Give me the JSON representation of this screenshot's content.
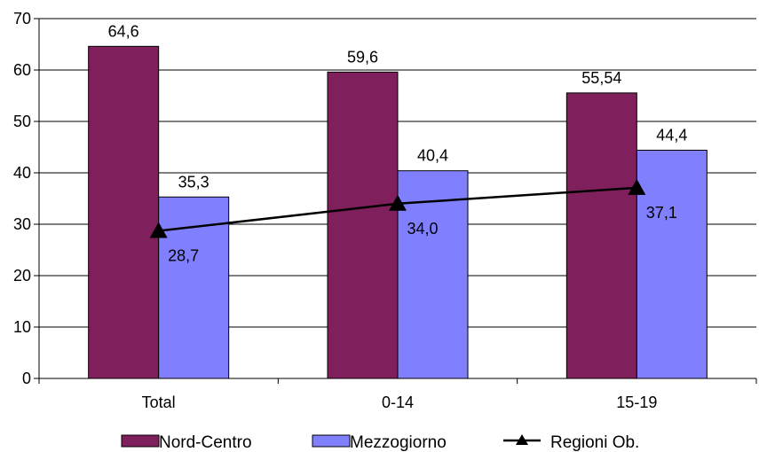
{
  "chart_data": {
    "type": "bar",
    "categories": [
      "Total",
      "0-14",
      "15-19"
    ],
    "series": [
      {
        "name": "Nord-Centro",
        "type": "bar",
        "color": "#7F1F5C",
        "values": [
          64.6,
          59.6,
          55.54
        ],
        "labels": [
          "64,6",
          "59,6",
          "55,54"
        ]
      },
      {
        "name": "Mezzogiorno",
        "type": "bar",
        "color": "#8080FF",
        "values": [
          35.3,
          40.4,
          44.4
        ],
        "labels": [
          "35,3",
          "40,4",
          "44,4"
        ]
      },
      {
        "name": "Regioni Ob.",
        "type": "line",
        "color": "#000000",
        "marker": "triangle",
        "values": [
          28.7,
          34.0,
          37.1
        ],
        "labels": [
          "28,7",
          "34,0",
          "37,1"
        ]
      }
    ],
    "y_ticks": [
      "0",
      "10",
      "20",
      "30",
      "40",
      "50",
      "60",
      "70"
    ],
    "ylim": [
      0,
      70
    ],
    "grid": true,
    "legend_position": "bottom"
  }
}
